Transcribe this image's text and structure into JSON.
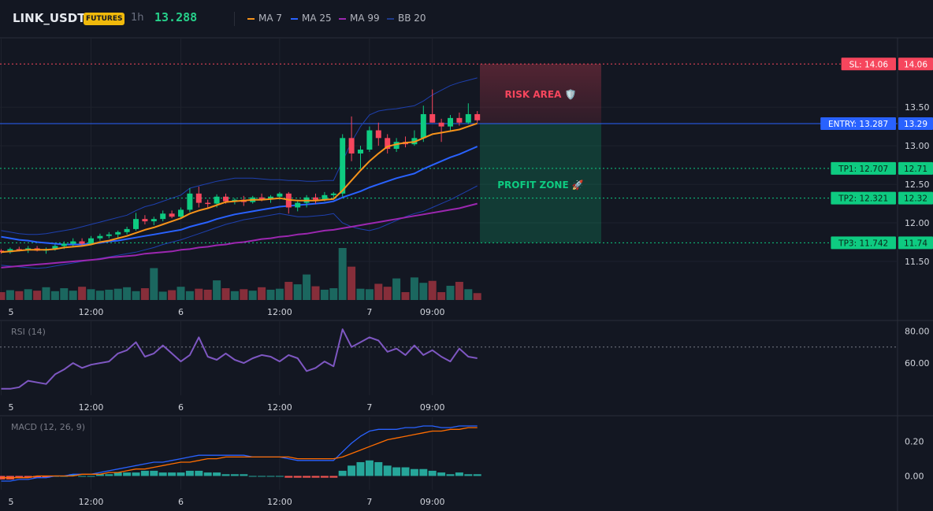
{
  "header": {
    "symbol": "LINK_USDT",
    "badge": "FUTURES",
    "timeframe": "1h",
    "price": "13.288",
    "indicators": [
      {
        "label": "MA 7",
        "color": "#f7931a"
      },
      {
        "label": "MA 25",
        "color": "#2962ff"
      },
      {
        "label": "MA 99",
        "color": "#9c27b0"
      },
      {
        "label": "BB 20",
        "color": "#1e3a8a"
      }
    ]
  },
  "colors": {
    "up": "#26a69a",
    "down": "#ef5350",
    "candle_up": "#0ecb81",
    "candle_down": "#f6465d",
    "ma7": "#f7931a",
    "ma25": "#2962ff",
    "ma99": "#9c27b0",
    "bb": "#1e40af",
    "rsi": "#7e57c2",
    "macd": "#2962ff",
    "signal": "#ff6d00"
  },
  "chart_data": [
    {
      "type": "candlestick",
      "title": "LINK_USDT 1h",
      "ylim": [
        11.0,
        14.4
      ],
      "yticks": [
        "13.50",
        "13.00",
        "12.50",
        "12.00",
        "11.50"
      ],
      "xticks": [
        "5",
        "12:00",
        "6",
        "12:00",
        "7",
        "09:00"
      ],
      "xtick_index": [
        0,
        10,
        20,
        31,
        41,
        48
      ],
      "candles": [
        [
          11.64,
          11.66,
          11.6,
          11.62
        ],
        [
          11.62,
          11.68,
          11.6,
          11.66
        ],
        [
          11.66,
          11.69,
          11.63,
          11.65
        ],
        [
          11.65,
          11.7,
          11.61,
          11.67
        ],
        [
          11.67,
          11.7,
          11.63,
          11.64
        ],
        [
          11.64,
          11.68,
          11.6,
          11.66
        ],
        [
          11.66,
          11.72,
          11.64,
          11.7
        ],
        [
          11.7,
          11.76,
          11.66,
          11.73
        ],
        [
          11.73,
          11.8,
          11.7,
          11.76
        ],
        [
          11.76,
          11.8,
          11.7,
          11.73
        ],
        [
          11.73,
          11.83,
          11.71,
          11.8
        ],
        [
          11.8,
          11.86,
          11.77,
          11.83
        ],
        [
          11.83,
          11.88,
          11.8,
          11.85
        ],
        [
          11.85,
          11.9,
          11.8,
          11.88
        ],
        [
          11.88,
          11.95,
          11.85,
          11.92
        ],
        [
          11.92,
          12.13,
          11.9,
          12.05
        ],
        [
          12.05,
          12.1,
          11.98,
          12.02
        ],
        [
          12.02,
          12.08,
          11.97,
          12.05
        ],
        [
          12.05,
          12.16,
          12.02,
          12.12
        ],
        [
          12.12,
          12.16,
          12.06,
          12.08
        ],
        [
          12.08,
          12.2,
          12.05,
          12.17
        ],
        [
          12.17,
          12.45,
          12.14,
          12.38
        ],
        [
          12.38,
          12.47,
          12.2,
          12.26
        ],
        [
          12.26,
          12.3,
          12.2,
          12.25
        ],
        [
          12.25,
          12.37,
          12.2,
          12.34
        ],
        [
          12.34,
          12.38,
          12.25,
          12.28
        ],
        [
          12.28,
          12.32,
          12.24,
          12.3
        ],
        [
          12.3,
          12.35,
          12.22,
          12.27
        ],
        [
          12.27,
          12.35,
          12.25,
          12.33
        ],
        [
          12.33,
          12.38,
          12.28,
          12.31
        ],
        [
          12.31,
          12.36,
          12.26,
          12.34
        ],
        [
          12.34,
          12.4,
          12.3,
          12.38
        ],
        [
          12.38,
          12.4,
          12.12,
          12.2
        ],
        [
          12.2,
          12.3,
          12.15,
          12.26
        ],
        [
          12.26,
          12.36,
          12.2,
          12.33
        ],
        [
          12.33,
          12.38,
          12.25,
          12.3
        ],
        [
          12.3,
          12.4,
          12.28,
          12.36
        ],
        [
          12.36,
          12.4,
          12.3,
          12.38
        ],
        [
          12.38,
          13.15,
          12.34,
          13.1
        ],
        [
          13.1,
          13.38,
          12.8,
          12.9
        ],
        [
          12.9,
          13.0,
          12.7,
          12.95
        ],
        [
          12.95,
          13.25,
          12.92,
          13.2
        ],
        [
          13.2,
          13.3,
          13.0,
          13.1
        ],
        [
          13.1,
          13.15,
          12.9,
          12.96
        ],
        [
          12.96,
          13.1,
          12.92,
          13.05
        ],
        [
          13.05,
          13.12,
          12.98,
          13.02
        ],
        [
          13.02,
          13.2,
          13.0,
          13.1
        ],
        [
          13.1,
          13.52,
          13.05,
          13.41
        ],
        [
          13.41,
          13.73,
          13.3,
          13.3
        ],
        [
          13.3,
          13.35,
          13.05,
          13.25
        ],
        [
          13.25,
          13.4,
          13.2,
          13.36
        ],
        [
          13.36,
          13.43,
          13.26,
          13.3
        ],
        [
          13.3,
          13.55,
          13.28,
          13.41
        ],
        [
          13.41,
          13.45,
          13.3,
          13.33
        ]
      ],
      "ma7": [
        11.62,
        11.63,
        11.64,
        11.65,
        11.65,
        11.65,
        11.66,
        11.68,
        11.69,
        11.7,
        11.72,
        11.75,
        11.77,
        11.8,
        11.83,
        11.87,
        11.91,
        11.94,
        11.98,
        12.02,
        12.06,
        12.12,
        12.16,
        12.19,
        12.23,
        12.27,
        12.28,
        12.29,
        12.3,
        12.3,
        12.31,
        12.32,
        12.3,
        12.29,
        12.29,
        12.29,
        12.3,
        12.31,
        12.42,
        12.55,
        12.68,
        12.8,
        12.9,
        12.99,
        13.02,
        13.04,
        13.05,
        13.1,
        13.15,
        13.17,
        13.19,
        13.21,
        13.25,
        13.29
      ],
      "ma25": [
        11.82,
        11.8,
        11.78,
        11.77,
        11.75,
        11.74,
        11.73,
        11.72,
        11.72,
        11.72,
        11.73,
        11.74,
        11.76,
        11.77,
        11.79,
        11.81,
        11.83,
        11.85,
        11.87,
        11.89,
        11.91,
        11.95,
        11.98,
        12.01,
        12.05,
        12.08,
        12.11,
        12.13,
        12.15,
        12.17,
        12.19,
        12.21,
        12.22,
        12.23,
        12.24,
        12.25,
        12.26,
        12.28,
        12.33,
        12.37,
        12.41,
        12.46,
        12.5,
        12.54,
        12.58,
        12.61,
        12.64,
        12.7,
        12.75,
        12.8,
        12.85,
        12.89,
        12.94,
        12.99
      ],
      "ma99": [
        11.42,
        11.43,
        11.44,
        11.45,
        11.46,
        11.47,
        11.48,
        11.49,
        11.5,
        11.51,
        11.52,
        11.53,
        11.55,
        11.56,
        11.57,
        11.58,
        11.6,
        11.61,
        11.62,
        11.63,
        11.65,
        11.66,
        11.68,
        11.69,
        11.71,
        11.72,
        11.74,
        11.75,
        11.77,
        11.79,
        11.8,
        11.82,
        11.83,
        11.85,
        11.86,
        11.88,
        11.9,
        11.91,
        11.93,
        11.95,
        11.97,
        11.99,
        12.01,
        12.03,
        12.05,
        12.07,
        12.09,
        12.11,
        12.13,
        12.15,
        12.17,
        12.19,
        12.22,
        12.25
      ],
      "bb_upper": [
        11.9,
        11.88,
        11.86,
        11.85,
        11.85,
        11.86,
        11.88,
        11.9,
        11.92,
        11.95,
        11.98,
        12.01,
        12.04,
        12.07,
        12.1,
        12.16,
        12.21,
        12.24,
        12.28,
        12.32,
        12.36,
        12.45,
        12.48,
        12.51,
        12.54,
        12.56,
        12.58,
        12.58,
        12.58,
        12.57,
        12.56,
        12.56,
        12.55,
        12.55,
        12.54,
        12.54,
        12.55,
        12.55,
        12.8,
        13.05,
        13.25,
        13.4,
        13.45,
        13.47,
        13.48,
        13.5,
        13.52,
        13.58,
        13.66,
        13.72,
        13.78,
        13.82,
        13.85,
        13.88
      ],
      "bb_lower": [
        11.45,
        11.44,
        11.43,
        11.42,
        11.41,
        11.42,
        11.44,
        11.46,
        11.48,
        11.5,
        11.52,
        11.54,
        11.56,
        11.58,
        11.6,
        11.62,
        11.65,
        11.68,
        11.72,
        11.75,
        11.78,
        11.82,
        11.86,
        11.9,
        11.94,
        11.98,
        12.01,
        12.04,
        12.06,
        12.08,
        12.1,
        12.12,
        12.1,
        12.08,
        12.08,
        12.09,
        12.1,
        12.12,
        12.0,
        11.95,
        11.92,
        11.9,
        11.93,
        11.98,
        12.03,
        12.08,
        12.12,
        12.15,
        12.2,
        12.25,
        12.3,
        12.36,
        12.42,
        12.48
      ],
      "volume": [
        16,
        20,
        18,
        22,
        19,
        26,
        18,
        24,
        19,
        27,
        22,
        19,
        21,
        23,
        26,
        18,
        24,
        65,
        17,
        20,
        27,
        18,
        23,
        21,
        40,
        24,
        18,
        22,
        19,
        26,
        21,
        23,
        37,
        32,
        52,
        28,
        21,
        24,
        106,
        68,
        23,
        22,
        33,
        27,
        44,
        16,
        46,
        35,
        39,
        16,
        29,
        37,
        22,
        14
      ],
      "levels": [
        {
          "name": "SL",
          "label": "SL: 14.06",
          "axis": "14.06",
          "value": 14.06,
          "color": "#f6465d"
        },
        {
          "name": "ENTRY",
          "label": "ENTRY: 13.287",
          "axis": "13.29",
          "value": 13.287,
          "color": "#2962ff"
        },
        {
          "name": "TP1",
          "label": "TP1: 12.707",
          "axis": "12.71",
          "value": 12.707,
          "color": "#0ecb81"
        },
        {
          "name": "TP2",
          "label": "TP2: 12.321",
          "axis": "12.32",
          "value": 12.321,
          "color": "#0ecb81"
        },
        {
          "name": "TP3",
          "label": "TP3: 11.742",
          "axis": "11.74",
          "value": 11.742,
          "color": "#0ecb81"
        }
      ],
      "zones": {
        "risk": "RISK AREA 🛡️",
        "profit": "PROFIT ZONE 🚀"
      }
    },
    {
      "type": "line",
      "title": "RSI (14)",
      "ylim": [
        40,
        86
      ],
      "yticks": [
        80,
        60
      ],
      "ytick_labels": [
        "80.00",
        "60.00"
      ],
      "overbought": 70,
      "values": [
        44,
        44,
        45,
        49,
        48,
        47,
        53,
        56,
        60,
        57,
        59,
        60,
        61,
        66,
        68,
        73,
        64,
        66,
        71,
        66,
        61,
        65,
        76,
        64,
        62,
        66,
        62,
        60,
        63,
        65,
        64,
        61,
        65,
        63,
        55,
        57,
        61,
        58,
        81,
        70,
        73,
        76,
        74,
        67,
        69,
        65,
        71,
        65,
        68,
        64,
        61,
        69,
        64,
        63
      ]
    },
    {
      "type": "line",
      "title": "MACD (12, 26, 9)",
      "ylim": [
        -0.08,
        0.34
      ],
      "yticks": [
        0.2,
        0.0
      ],
      "ytick_labels": [
        "0.20",
        "0.00"
      ],
      "macd": [
        -0.03,
        -0.03,
        -0.02,
        -0.02,
        -0.01,
        -0.01,
        0.0,
        0.0,
        0.01,
        0.01,
        0.01,
        0.02,
        0.03,
        0.04,
        0.05,
        0.06,
        0.07,
        0.08,
        0.08,
        0.09,
        0.1,
        0.11,
        0.12,
        0.12,
        0.12,
        0.12,
        0.12,
        0.12,
        0.11,
        0.11,
        0.11,
        0.11,
        0.1,
        0.09,
        0.09,
        0.09,
        0.09,
        0.09,
        0.14,
        0.19,
        0.23,
        0.26,
        0.27,
        0.27,
        0.27,
        0.28,
        0.28,
        0.29,
        0.29,
        0.28,
        0.28,
        0.29,
        0.29,
        0.29
      ],
      "signal": [
        -0.01,
        -0.01,
        -0.01,
        -0.01,
        0.0,
        0.0,
        0.0,
        0.0,
        0.0,
        0.01,
        0.01,
        0.01,
        0.02,
        0.02,
        0.03,
        0.04,
        0.04,
        0.05,
        0.06,
        0.07,
        0.08,
        0.08,
        0.09,
        0.1,
        0.1,
        0.11,
        0.11,
        0.11,
        0.11,
        0.11,
        0.11,
        0.11,
        0.11,
        0.1,
        0.1,
        0.1,
        0.1,
        0.1,
        0.11,
        0.13,
        0.15,
        0.17,
        0.19,
        0.21,
        0.22,
        0.23,
        0.24,
        0.25,
        0.26,
        0.26,
        0.27,
        0.27,
        0.28,
        0.28
      ],
      "histogram": [
        -0.02,
        -0.02,
        -0.01,
        -0.01,
        -0.01,
        -0.01,
        0.0,
        0.0,
        0.01,
        0.0,
        0.0,
        0.01,
        0.01,
        0.02,
        0.02,
        0.02,
        0.03,
        0.03,
        0.02,
        0.02,
        0.02,
        0.03,
        0.03,
        0.02,
        0.02,
        0.01,
        0.01,
        0.01,
        0.0,
        0.0,
        0.0,
        0.0,
        -0.01,
        -0.01,
        -0.01,
        -0.01,
        -0.01,
        -0.01,
        0.03,
        0.06,
        0.08,
        0.09,
        0.08,
        0.06,
        0.05,
        0.05,
        0.04,
        0.04,
        0.03,
        0.02,
        0.01,
        0.02,
        0.01,
        0.01
      ]
    }
  ]
}
